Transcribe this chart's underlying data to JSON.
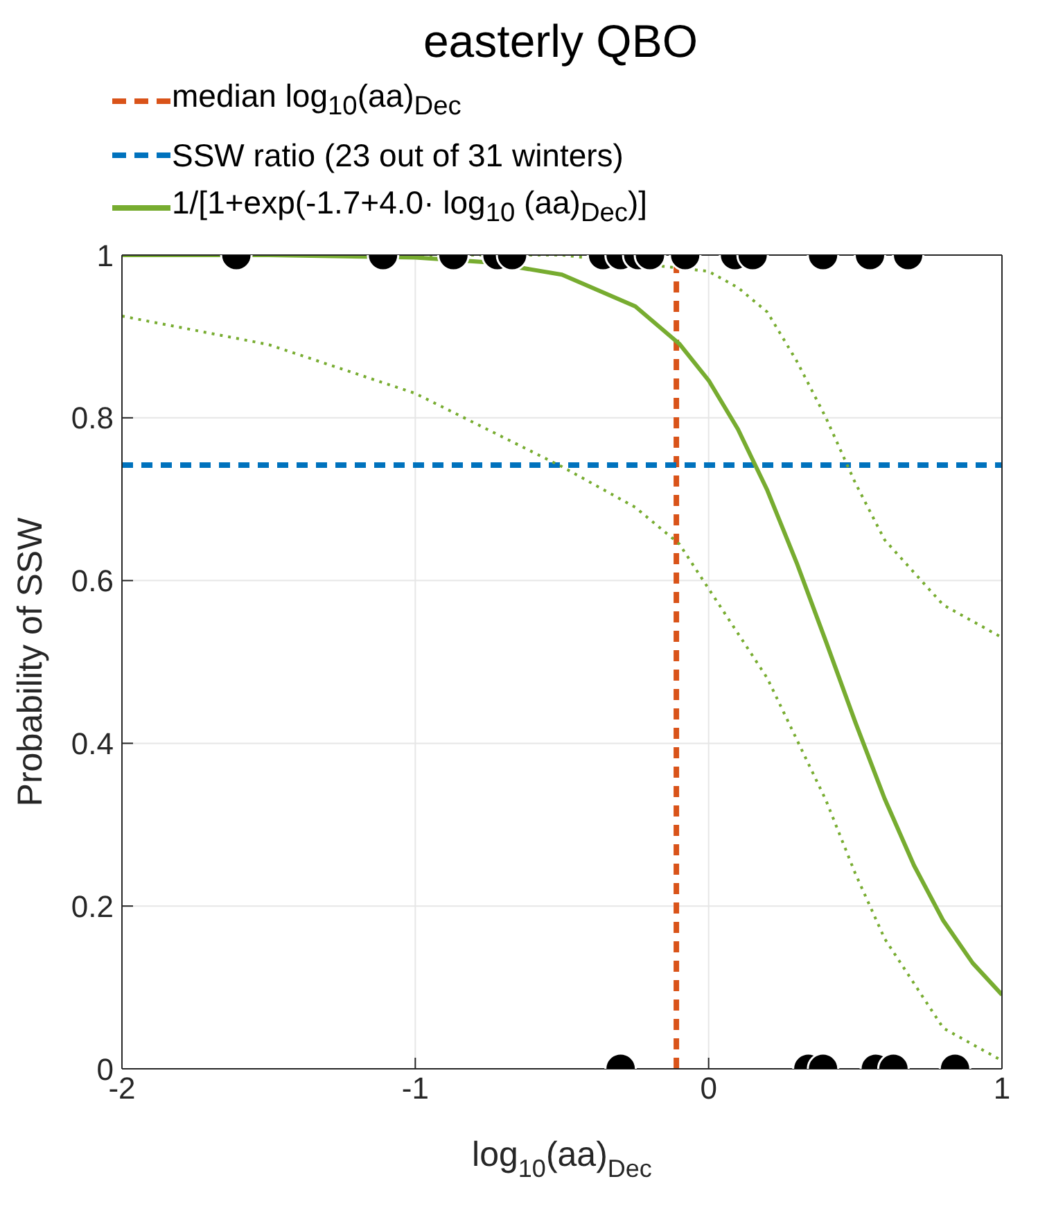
{
  "chart_data": {
    "type": "line",
    "title": "easterly QBO",
    "xlabel": "log$_{10}$(aa)$_{Dec}$",
    "ylabel": "Probability of SSW",
    "xlim": [
      -2,
      1
    ],
    "xticks": [
      -2,
      -1,
      0,
      1
    ],
    "ylim": [
      0,
      1
    ],
    "yticks": [
      0,
      0.2,
      0.4,
      0.6,
      0.8,
      1
    ],
    "grid": true,
    "legend": "top",
    "ref_lines": [
      {
        "axis": "x",
        "value": -0.11,
        "label": "median log$_{10}$(aa)$_{Dec}$",
        "color": "#d95319",
        "line_style": "dashed"
      },
      {
        "axis": "y",
        "value": 0.742,
        "label": "SSW ratio (23 out of 31 winters)",
        "color": "#0072bd",
        "line_style": "dashed"
      }
    ],
    "series": [
      {
        "name": "1/[1+exp(-1.7+4.0· log$_{10}$ (aa)$_{Dec}$)]",
        "color": "#77ac30",
        "line_style": "solid",
        "marker": "none",
        "x": [
          -2,
          -1.5,
          -1,
          -0.75,
          -0.5,
          -0.25,
          -0.1,
          0,
          0.1,
          0.2,
          0.3,
          0.4,
          0.5,
          0.6,
          0.7,
          0.8,
          0.9,
          1
        ],
        "values": [
          1,
          1,
          0.997,
          0.991,
          0.976,
          0.937,
          0.891,
          0.846,
          0.786,
          0.711,
          0.622,
          0.525,
          0.426,
          0.332,
          0.25,
          0.182,
          0.13,
          0.091
        ]
      },
      {
        "color": "#77ac30",
        "line_style": "dotted",
        "marker": "none",
        "x": [
          -2,
          -1.5,
          -1,
          -0.5,
          -0.25,
          -0.1,
          0,
          0.2,
          0.4,
          0.5,
          0.6,
          0.8,
          1
        ],
        "values": [
          0.925,
          0.89,
          0.83,
          0.74,
          0.69,
          0.645,
          0.59,
          0.48,
          0.33,
          0.24,
          0.16,
          0.05,
          0.01
        ]
      },
      {
        "color": "#77ac30",
        "line_style": "dotted",
        "marker": "none",
        "x": [
          -2,
          -1,
          -0.5,
          0,
          0.1,
          0.2,
          0.3,
          0.4,
          0.5,
          0.6,
          0.8,
          1
        ],
        "values": [
          1,
          1,
          1,
          0.98,
          0.96,
          0.93,
          0.87,
          0.8,
          0.72,
          0.65,
          0.57,
          0.53
        ]
      },
      {
        "type": "scatter",
        "color": "#000000",
        "marker": "circle",
        "x": [
          -1.61,
          -1.11,
          -0.87,
          -0.72,
          -0.67,
          -0.36,
          -0.3,
          -0.24,
          -0.2,
          -0.08,
          0.09,
          0.15,
          0.39,
          0.55,
          0.68,
          -0.3,
          0.34,
          0.39,
          0.57,
          0.63,
          0.84
        ],
        "values": [
          1,
          1,
          1,
          1,
          1,
          1,
          1,
          1,
          1,
          1,
          1,
          1,
          1,
          1,
          1,
          0,
          0,
          0,
          0,
          0,
          0
        ]
      }
    ]
  }
}
